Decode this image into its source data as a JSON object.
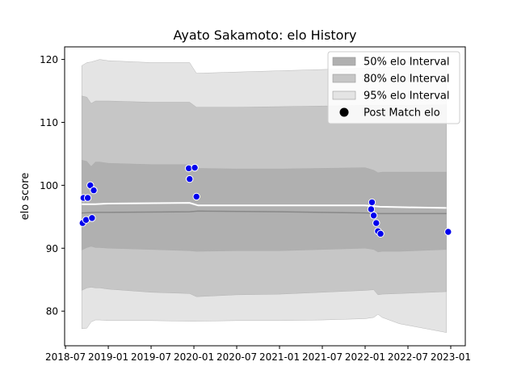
{
  "chart_data": {
    "type": "line",
    "title": "Ayato Sakamoto: elo History",
    "xlabel": "",
    "ylabel": "elo score",
    "x_ticks": [
      {
        "t": 2018.5,
        "label": "2018-07"
      },
      {
        "t": 2019.0,
        "label": "2019-01"
      },
      {
        "t": 2019.5,
        "label": "2019-07"
      },
      {
        "t": 2020.0,
        "label": "2020-01"
      },
      {
        "t": 2020.5,
        "label": "2020-07"
      },
      {
        "t": 2021.0,
        "label": "2021-01"
      },
      {
        "t": 2021.5,
        "label": "2021-07"
      },
      {
        "t": 2022.0,
        "label": "2022-01"
      },
      {
        "t": 2022.5,
        "label": "2022-07"
      },
      {
        "t": 2023.0,
        "label": "2023-01"
      }
    ],
    "y_ticks": [
      80,
      90,
      100,
      110,
      120
    ],
    "xlim": [
      2018.49,
      2023.17
    ],
    "ylim": [
      74.5,
      122
    ],
    "legend": {
      "location": "top-right",
      "items": [
        {
          "label": "50% elo Interval",
          "kind": "band",
          "color": "#b0b0b0"
        },
        {
          "label": "80% elo Interval",
          "kind": "band",
          "color": "#c6c6c6"
        },
        {
          "label": "95% elo Interval",
          "kind": "band",
          "color": "#e4e4e4"
        },
        {
          "label": "Post Match elo",
          "kind": "marker",
          "color": "#000000"
        }
      ]
    },
    "bands": {
      "t": [
        2018.69,
        2018.75,
        2018.8,
        2018.85,
        2018.9,
        2019.0,
        2019.5,
        2019.95,
        2020.03,
        2020.5,
        2021.0,
        2021.5,
        2022.0,
        2022.1,
        2022.15,
        2022.2,
        2022.4,
        2022.95
      ],
      "p95_hi": [
        119.0,
        119.5,
        119.6,
        119.8,
        120.0,
        119.8,
        119.5,
        119.5,
        117.8,
        118.0,
        118.2,
        118.4,
        118.6,
        118.6,
        118.7,
        118.7,
        118.8,
        119.0
      ],
      "p80_hi": [
        114.2,
        114.0,
        113.0,
        113.4,
        113.4,
        113.4,
        113.2,
        113.2,
        112.4,
        112.4,
        112.5,
        112.6,
        112.7,
        112.7,
        112.7,
        112.7,
        112.7,
        112.8
      ],
      "p50_hi": [
        104.0,
        103.8,
        103.0,
        103.7,
        103.7,
        103.5,
        103.3,
        103.3,
        102.7,
        102.6,
        102.6,
        102.7,
        102.8,
        102.4,
        102.0,
        102.1,
        102.1,
        102.1
      ],
      "p50_lo": [
        89.7,
        90.1,
        90.3,
        90.1,
        90.1,
        90.0,
        89.8,
        89.6,
        89.5,
        89.6,
        89.6,
        89.8,
        90.0,
        89.8,
        89.4,
        89.5,
        89.5,
        89.8
      ],
      "p80_lo": [
        83.3,
        83.7,
        83.8,
        83.7,
        83.7,
        83.5,
        83.0,
        82.8,
        82.3,
        82.6,
        82.7,
        83.0,
        83.3,
        83.4,
        82.6,
        82.7,
        82.8,
        83.1
      ],
      "p95_lo": [
        77.2,
        77.3,
        78.3,
        78.6,
        78.6,
        78.5,
        78.5,
        78.4,
        78.4,
        78.5,
        78.5,
        78.6,
        78.8,
        79.0,
        79.5,
        79.0,
        78.0,
        76.6
      ]
    },
    "series": [
      {
        "name": "Mean elo",
        "color": "#ffffff",
        "t": [
          2018.69,
          2018.85,
          2019.0,
          2019.95,
          2020.05,
          2021.0,
          2022.0,
          2022.17,
          2022.5,
          2022.95
        ],
        "values": [
          97.0,
          97.0,
          97.1,
          97.2,
          96.8,
          96.8,
          96.8,
          96.6,
          96.5,
          96.4
        ]
      },
      {
        "name": "Median elo",
        "color": "#888888",
        "t": [
          2018.69,
          2018.85,
          2019.0,
          2019.95,
          2020.05,
          2021.0,
          2022.0,
          2022.17,
          2022.5,
          2022.95
        ],
        "values": [
          95.6,
          95.7,
          95.7,
          95.8,
          95.9,
          95.8,
          95.6,
          95.5,
          95.5,
          95.5
        ]
      }
    ],
    "points": {
      "name": "Post Match elo",
      "color": "#0000ee",
      "t": [
        2018.7,
        2018.71,
        2018.74,
        2018.76,
        2018.79,
        2018.81,
        2018.83,
        2019.94,
        2019.95,
        2020.01,
        2020.03,
        2022.07,
        2022.08,
        2022.1,
        2022.13,
        2022.15,
        2022.18,
        2022.97
      ],
      "values": [
        94.0,
        98.0,
        94.5,
        98.0,
        100.0,
        94.8,
        99.2,
        102.7,
        101.0,
        102.8,
        98.2,
        96.2,
        97.3,
        95.2,
        94.0,
        92.7,
        92.3,
        92.6
      ]
    }
  }
}
